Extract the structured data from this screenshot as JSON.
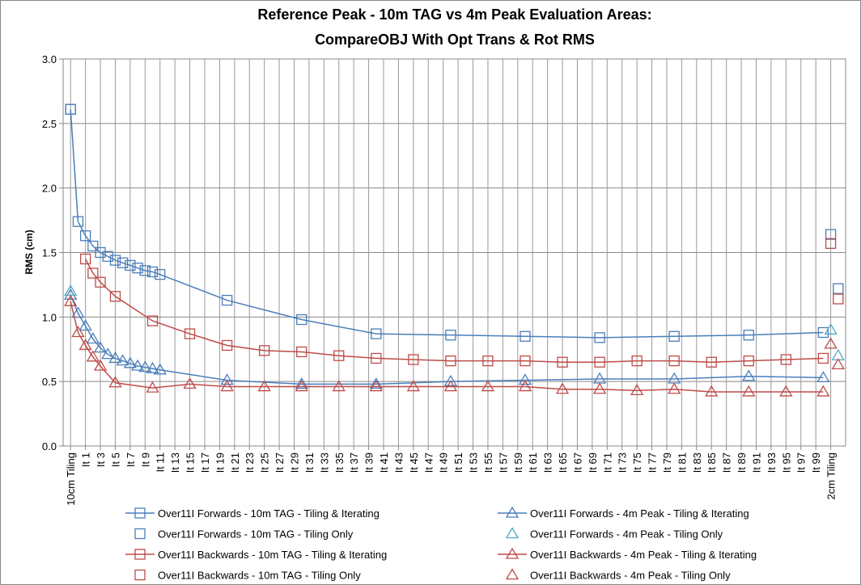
{
  "chart_data": {
    "type": "line",
    "title_lines": [
      "Reference Peak - 10m TAG vs 4m Peak Evaluation Areas:",
      "CompareOBJ With Opt Trans & Rot RMS"
    ],
    "y_label": "RMS (cm)",
    "xlim": [
      -2,
      103
    ],
    "ylim": [
      0,
      3
    ],
    "yticks": [
      {
        "value": 0,
        "label": "0.0"
      },
      0.5,
      {
        "value": 1,
        "label": "1.0"
      },
      1.5,
      {
        "value": 2,
        "label": "2.0"
      },
      2.5,
      {
        "value": 3,
        "label": "3.0"
      }
    ],
    "xticks": [
      {
        "value": -1,
        "label": "10cm Tiling"
      },
      {
        "value": 1,
        "label": "It 1"
      },
      {
        "value": 3,
        "label": "It 3"
      },
      {
        "value": 5,
        "label": "It 5"
      },
      {
        "value": 7,
        "label": "It 7"
      },
      {
        "value": 9,
        "label": "It 9"
      },
      {
        "value": 11,
        "label": "It 11"
      },
      {
        "value": 13,
        "label": "It 13"
      },
      {
        "value": 15,
        "label": "It 15"
      },
      {
        "value": 17,
        "label": "It 17"
      },
      {
        "value": 19,
        "label": "It 19"
      },
      {
        "value": 21,
        "label": "It 21"
      },
      {
        "value": 23,
        "label": "It 23"
      },
      {
        "value": 25,
        "label": "It 25"
      },
      {
        "value": 27,
        "label": "It 27"
      },
      {
        "value": 29,
        "label": "It 29"
      },
      {
        "value": 31,
        "label": "It 31"
      },
      {
        "value": 33,
        "label": "It 33"
      },
      {
        "value": 35,
        "label": "It 35"
      },
      {
        "value": 37,
        "label": "It 37"
      },
      {
        "value": 39,
        "label": "It 39"
      },
      {
        "value": 41,
        "label": "It 41"
      },
      {
        "value": 43,
        "label": "It 43"
      },
      {
        "value": 45,
        "label": "It 45"
      },
      {
        "value": 47,
        "label": "It 47"
      },
      {
        "value": 49,
        "label": "It 49"
      },
      {
        "value": 51,
        "label": "It 51"
      },
      {
        "value": 53,
        "label": "It 53"
      },
      {
        "value": 55,
        "label": "It 55"
      },
      {
        "value": 57,
        "label": "It 57"
      },
      {
        "value": 59,
        "label": "It 59"
      },
      {
        "value": 61,
        "label": "It 61"
      },
      {
        "value": 63,
        "label": "It 63"
      },
      {
        "value": 65,
        "label": "It 65"
      },
      {
        "value": 67,
        "label": "It 67"
      },
      {
        "value": 69,
        "label": "It 69"
      },
      {
        "value": 71,
        "label": "It 71"
      },
      {
        "value": 73,
        "label": "It 73"
      },
      {
        "value": 75,
        "label": "It 75"
      },
      {
        "value": 77,
        "label": "It 77"
      },
      {
        "value": 79,
        "label": "It 79"
      },
      {
        "value": 81,
        "label": "It 81"
      },
      {
        "value": 83,
        "label": "It 83"
      },
      {
        "value": 85,
        "label": "It 85"
      },
      {
        "value": 87,
        "label": "It 87"
      },
      {
        "value": 89,
        "label": "It 89"
      },
      {
        "value": 91,
        "label": "It 91"
      },
      {
        "value": 93,
        "label": "It 93"
      },
      {
        "value": 95,
        "label": "It 95"
      },
      {
        "value": 97,
        "label": "It 97"
      },
      {
        "value": 99,
        "label": "It 99"
      },
      {
        "value": 101,
        "label": "2cm Tiling"
      }
    ],
    "grid": true,
    "series": [
      {
        "name": "Over11I Forwards - 10m TAG - Tiling & Iterating",
        "color": "#4a7ebb",
        "marker": "square",
        "line": true,
        "x": [
          -1,
          0,
          1,
          2,
          3,
          4,
          5,
          6,
          7,
          8,
          9,
          10,
          11,
          20,
          30,
          40,
          50,
          60,
          70,
          80,
          90,
          100
        ],
        "values": [
          2.61,
          1.74,
          1.63,
          1.55,
          1.5,
          1.47,
          1.44,
          1.42,
          1.4,
          1.38,
          1.36,
          1.35,
          1.33,
          1.13,
          0.98,
          0.87,
          0.86,
          0.85,
          0.84,
          0.85,
          0.86,
          0.88
        ]
      },
      {
        "name": "Over11I Forwards - 10m TAG - Tiling Only",
        "color": "#4a7ebb",
        "marker": "square",
        "line": false,
        "x": [
          -1,
          101,
          102
        ],
        "values": [
          2.61,
          1.64,
          1.22
        ]
      },
      {
        "name": "Over11I Backwards - 10m TAG - Tiling & Iterating",
        "color": "#be4b48",
        "marker": "square",
        "line": true,
        "x": [
          1,
          2,
          3,
          5,
          10,
          15,
          20,
          25,
          30,
          35,
          40,
          45,
          50,
          55,
          60,
          65,
          70,
          75,
          80,
          85,
          90,
          95,
          100
        ],
        "values": [
          1.45,
          1.34,
          1.27,
          1.16,
          0.97,
          0.87,
          0.78,
          0.74,
          0.73,
          0.7,
          0.68,
          0.67,
          0.66,
          0.66,
          0.66,
          0.65,
          0.65,
          0.66,
          0.66,
          0.65,
          0.66,
          0.67,
          0.68
        ]
      },
      {
        "name": "Over11I Backwards - 10m TAG - Tiling Only",
        "color": "#be4b48",
        "marker": "square",
        "line": false,
        "x": [
          101,
          102
        ],
        "values": [
          1.57,
          1.14
        ]
      },
      {
        "name": "Over11I Forwards - 4m Peak - Tiling & Iterating",
        "color": "#4a7ebb",
        "marker": "triangle",
        "line": true,
        "x": [
          -1,
          0,
          1,
          2,
          3,
          4,
          5,
          6,
          7,
          8,
          9,
          10,
          11,
          20,
          30,
          40,
          50,
          60,
          70,
          80,
          90,
          100
        ],
        "values": [
          1.17,
          1.03,
          0.93,
          0.83,
          0.76,
          0.71,
          0.68,
          0.66,
          0.64,
          0.62,
          0.61,
          0.6,
          0.59,
          0.51,
          0.48,
          0.48,
          0.5,
          0.51,
          0.52,
          0.52,
          0.54,
          0.53
        ]
      },
      {
        "name": "Over11I Forwards - 4m Peak - Tiling Only",
        "color": "#4bacc6",
        "marker": "triangle",
        "line": false,
        "x": [
          -1,
          101,
          102
        ],
        "values": [
          1.2,
          0.9,
          0.7
        ]
      },
      {
        "name": "Over11I Backwards - 4m Peak - Tiling & Iterating",
        "color": "#be4b48",
        "marker": "triangle",
        "line": true,
        "x": [
          -1,
          0,
          1,
          2,
          3,
          5,
          10,
          15,
          20,
          25,
          30,
          35,
          40,
          45,
          50,
          55,
          60,
          65,
          70,
          75,
          80,
          85,
          90,
          95,
          100
        ],
        "values": [
          1.12,
          0.88,
          0.78,
          0.69,
          0.62,
          0.49,
          0.45,
          0.48,
          0.46,
          0.46,
          0.46,
          0.46,
          0.46,
          0.46,
          0.46,
          0.46,
          0.46,
          0.44,
          0.44,
          0.43,
          0.44,
          0.42,
          0.42,
          0.42,
          0.42
        ]
      },
      {
        "name": "Over11I Backwards - 4m Peak - Tiling Only",
        "color": "#be4b48",
        "marker": "triangle",
        "line": false,
        "x": [
          101,
          102
        ],
        "values": [
          0.79,
          0.63
        ]
      }
    ]
  }
}
